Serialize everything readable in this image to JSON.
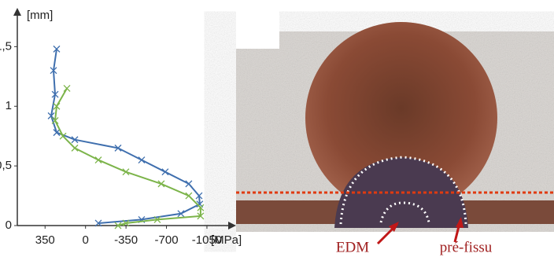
{
  "chart_data": {
    "type": "line",
    "xlabel": "[MPa]",
    "ylabel": "[mm]",
    "xlim": [
      590,
      -1200
    ],
    "xticks": [
      350,
      0,
      -350,
      -700,
      -1050
    ],
    "ylim": [
      0,
      1.7
    ],
    "yticks": [
      0,
      {
        "value": 0.5,
        "label": "0,5"
      },
      1,
      {
        "value": 1.5,
        "label": "1,5"
      }
    ],
    "series": [
      {
        "color": "#3f6fae",
        "depth": [
          1.48,
          1.3,
          1.1,
          0.92,
          0.78,
          0.72,
          0.65,
          0.55,
          0.45,
          0.35,
          0.25,
          0.18,
          0.1,
          0.05,
          0.02
        ],
        "values": [
          250,
          277,
          263,
          297,
          250,
          93,
          -281,
          -485,
          -689,
          -893,
          -982,
          -988,
          -825,
          -485,
          -111
        ]
      },
      {
        "color": "#7cb44a",
        "depth": [
          1.15,
          1.0,
          0.88,
          0.75,
          0.65,
          0.55,
          0.45,
          0.35,
          0.25,
          0.15,
          0.08,
          0.05,
          0.02,
          0
        ],
        "values": [
          161,
          250,
          263,
          195,
          93,
          -111,
          -349,
          -655,
          -893,
          -995,
          -995,
          -621,
          -349,
          -281
        ]
      }
    ]
  },
  "photo": {
    "labels": [
      "EDM",
      "pré-fissu"
    ]
  }
}
